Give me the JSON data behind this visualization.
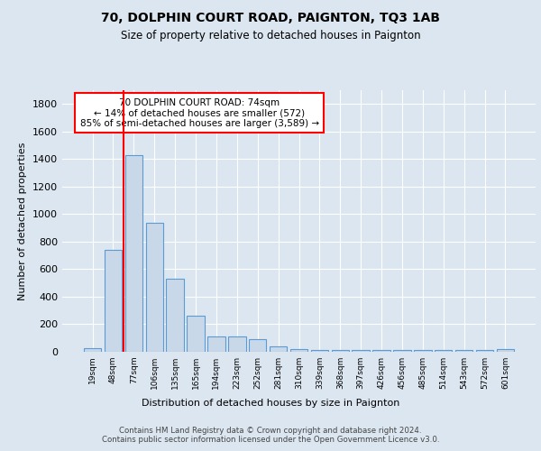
{
  "title1": "70, DOLPHIN COURT ROAD, PAIGNTON, TQ3 1AB",
  "title2": "Size of property relative to detached houses in Paignton",
  "xlabel": "Distribution of detached houses by size in Paignton",
  "ylabel": "Number of detached properties",
  "categories": [
    "19sqm",
    "48sqm",
    "77sqm",
    "106sqm",
    "135sqm",
    "165sqm",
    "194sqm",
    "223sqm",
    "252sqm",
    "281sqm",
    "310sqm",
    "339sqm",
    "368sqm",
    "397sqm",
    "426sqm",
    "456sqm",
    "485sqm",
    "514sqm",
    "543sqm",
    "572sqm",
    "601sqm"
  ],
  "values": [
    25,
    740,
    1430,
    935,
    530,
    265,
    110,
    110,
    95,
    42,
    22,
    10,
    10,
    10,
    10,
    10,
    10,
    10,
    10,
    10,
    18
  ],
  "bar_color": "#c8d8e8",
  "bar_edge_color": "#5b9bd5",
  "red_line_x": 1.5,
  "annotation_text": "70 DOLPHIN COURT ROAD: 74sqm\n← 14% of detached houses are smaller (572)\n85% of semi-detached houses are larger (3,589) →",
  "annotation_box_color": "white",
  "annotation_box_edge_color": "red",
  "footer": "Contains HM Land Registry data © Crown copyright and database right 2024.\nContains public sector information licensed under the Open Government Licence v3.0.",
  "ylim": [
    0,
    1900
  ],
  "yticks": [
    0,
    200,
    400,
    600,
    800,
    1000,
    1200,
    1400,
    1600,
    1800
  ],
  "bg_color": "#dce6f0",
  "plot_bg_color": "#dce6f0"
}
